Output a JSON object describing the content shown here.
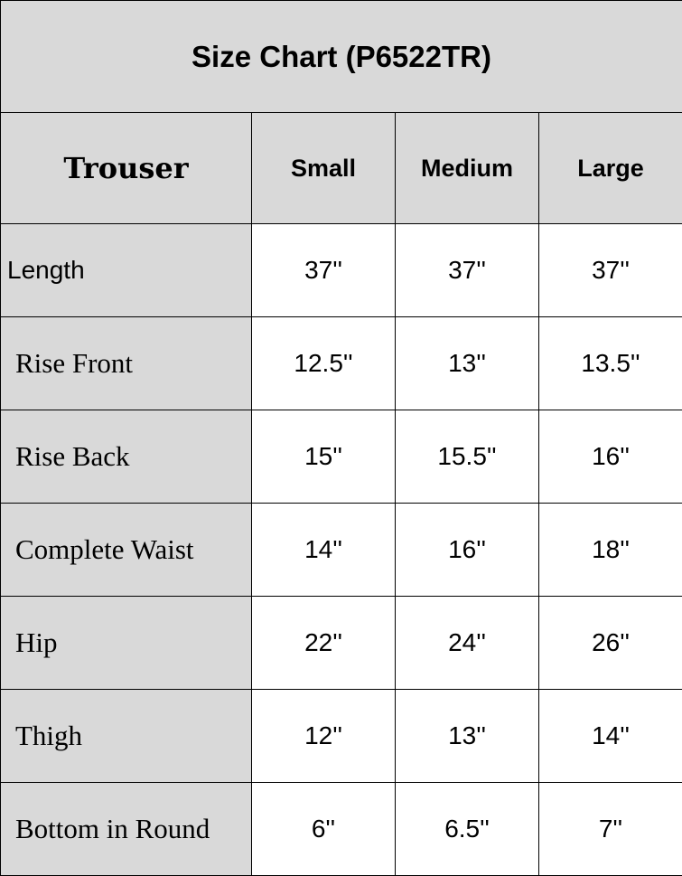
{
  "title": "Size Chart (P6522TR)",
  "headers": [
    "Trouser",
    "Small",
    "Medium",
    "Large"
  ],
  "rows": [
    {
      "label": "Length",
      "values": [
        "37''",
        "37''",
        "37''"
      ]
    },
    {
      "label": "Rise Front",
      "values": [
        "12.5''",
        "13''",
        "13.5''"
      ]
    },
    {
      "label": "Rise Back",
      "values": [
        "15''",
        "15.5''",
        "16''"
      ]
    },
    {
      "label": "Complete Waist",
      "values": [
        "14''",
        "16''",
        "18''"
      ]
    },
    {
      "label": "Hip",
      "values": [
        "22''",
        "24''",
        "26''"
      ]
    },
    {
      "label": "Thigh",
      "values": [
        "12''",
        "13''",
        "14''"
      ]
    },
    {
      "label": "Bottom in Round",
      "values": [
        "6''",
        "6.5''",
        "7''"
      ]
    }
  ],
  "colors": {
    "header_bg": "#d9d9d9",
    "border": "#000000"
  }
}
